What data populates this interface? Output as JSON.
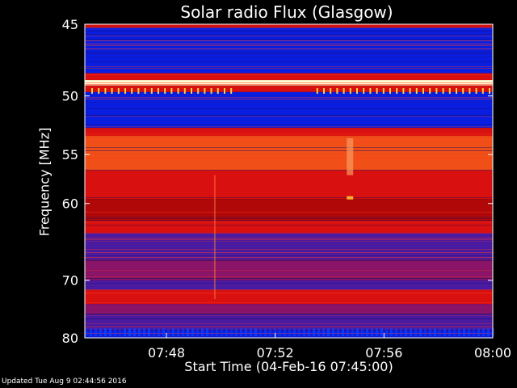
{
  "chart_data": {
    "type": "heatmap",
    "title": "Solar radio Flux (Glasgow)",
    "ylabel": "Frequency [MHz]",
    "xlabel": "Start Time (04-Feb-16 07:45:00)",
    "x_ticks": [
      "07:48",
      "07:52",
      "07:56",
      "08:00"
    ],
    "x_tick_minutes": [
      48,
      52,
      56,
      60
    ],
    "xlim_minutes": [
      45,
      60
    ],
    "y_ticks": [
      45,
      50,
      55,
      60,
      70,
      80
    ],
    "ylim_mhz": [
      45,
      80
    ],
    "bands": [
      {
        "f0": 45.0,
        "f1": 45.2,
        "level": "red"
      },
      {
        "f0": 45.2,
        "f1": 48.3,
        "level": "blue"
      },
      {
        "f0": 48.3,
        "f1": 48.8,
        "level": "red"
      },
      {
        "f0": 48.8,
        "f1": 49.2,
        "level": "white"
      },
      {
        "f0": 49.2,
        "f1": 49.7,
        "level": "red"
      },
      {
        "f0": 49.7,
        "f1": 52.6,
        "level": "blue"
      },
      {
        "f0": 52.6,
        "f1": 53.3,
        "level": "red"
      },
      {
        "f0": 53.3,
        "f1": 56.5,
        "level": "orange"
      },
      {
        "f0": 56.5,
        "f1": 59.5,
        "level": "red"
      },
      {
        "f0": 59.5,
        "f1": 62.0,
        "level": "dark-red"
      },
      {
        "f0": 62.0,
        "f1": 63.5,
        "level": "red"
      },
      {
        "f0": 63.5,
        "f1": 67.0,
        "level": "purple"
      },
      {
        "f0": 67.0,
        "f1": 70.0,
        "level": "purple-red"
      },
      {
        "f0": 70.0,
        "f1": 71.5,
        "level": "purple"
      },
      {
        "f0": 71.5,
        "f1": 73.8,
        "level": "red"
      },
      {
        "f0": 73.8,
        "f1": 75.5,
        "level": "purple-red"
      },
      {
        "f0": 75.5,
        "f1": 78.5,
        "level": "purple"
      },
      {
        "f0": 78.5,
        "f1": 80.0,
        "level": "blue"
      }
    ],
    "colors": {
      "blue": "#0a1ee0",
      "red": "#d81010",
      "dark-red": "#b00808",
      "orange": "#f05018",
      "white": "#fff8d0",
      "purple": "#4a1aa0",
      "purple-red": "#8a1468"
    },
    "background": "#000000"
  },
  "footer": "Updated Tue Aug  9 02:44:56 2016"
}
